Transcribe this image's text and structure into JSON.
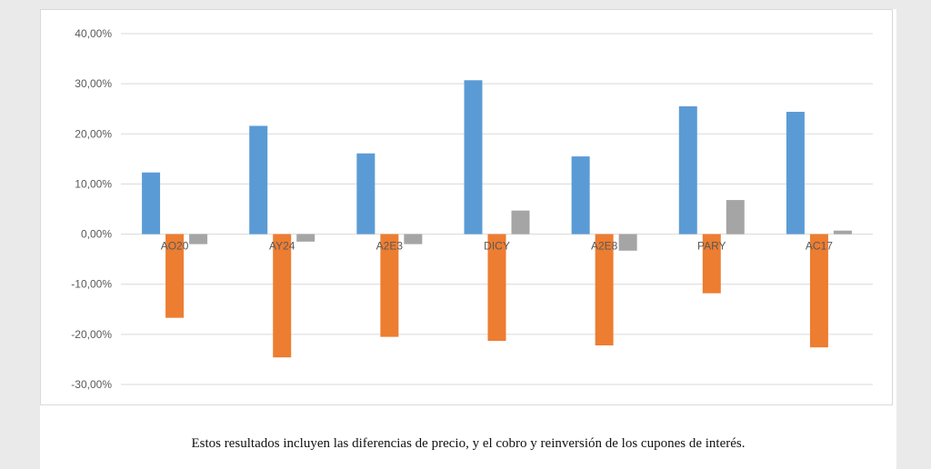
{
  "chart_data": {
    "type": "bar",
    "categories": [
      "AO20",
      "AY24",
      "A2E3",
      "DICY",
      "A2E8",
      "PARY",
      "AC17"
    ],
    "series": [
      {
        "values": [
          12.3,
          21.6,
          16.1,
          30.7,
          15.5,
          25.5,
          24.4
        ]
      },
      {
        "values": [
          -16.7,
          -24.6,
          -20.5,
          -21.3,
          -22.2,
          -11.8,
          -22.6
        ]
      },
      {
        "values": [
          -2.0,
          -1.5,
          -2.0,
          4.7,
          -3.3,
          6.8,
          0.7
        ]
      }
    ],
    "colors": [
      "#5b9bd5",
      "#ed7d31",
      "#a5a5a5"
    ],
    "gridline_color": "#d9d9d9",
    "ylim": [
      -30,
      40
    ],
    "yticks": [
      40,
      30,
      20,
      10,
      0,
      -10,
      -20,
      -30
    ],
    "ytick_labels": [
      "40,00%",
      "30,00%",
      "20,00%",
      "10,00%",
      "0,00%",
      "-10,00%",
      "-20,00%",
      "-30,00%"
    ],
    "grid": true,
    "legend": "none"
  },
  "caption": "Estos resultados incluyen las diferencias de precio, y el cobro y reinversión de los cupones de interés."
}
